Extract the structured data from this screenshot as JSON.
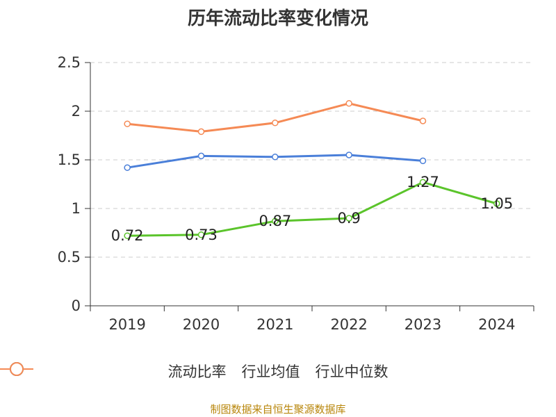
{
  "chart_data": {
    "type": "line",
    "title": "历年流动比率变化情况",
    "categories": [
      "2019",
      "2020",
      "2021",
      "2022",
      "2023",
      "2024"
    ],
    "ylim": [
      0,
      2.5
    ],
    "yticks": [
      "0",
      "0.5",
      "1",
      "1.5",
      "2",
      "2.5"
    ],
    "grid": true,
    "series": [
      {
        "name": "流动比率",
        "color": "#5bc42b",
        "values": [
          0.72,
          0.73,
          0.87,
          0.9,
          1.27,
          1.05
        ],
        "labels": [
          "0.72",
          "0.73",
          "0.87",
          "0.9",
          "1.27",
          "1.05"
        ]
      },
      {
        "name": "行业均值",
        "color": "#4a7fd9",
        "values": [
          1.42,
          1.54,
          1.53,
          1.55,
          1.49,
          null
        ]
      },
      {
        "name": "行业中位数",
        "color": "#f58a55",
        "values": [
          1.87,
          1.79,
          1.88,
          2.08,
          1.9,
          null
        ]
      }
    ],
    "legend_position": "bottom"
  },
  "source_note": "制图数据来自恒生聚源数据库"
}
